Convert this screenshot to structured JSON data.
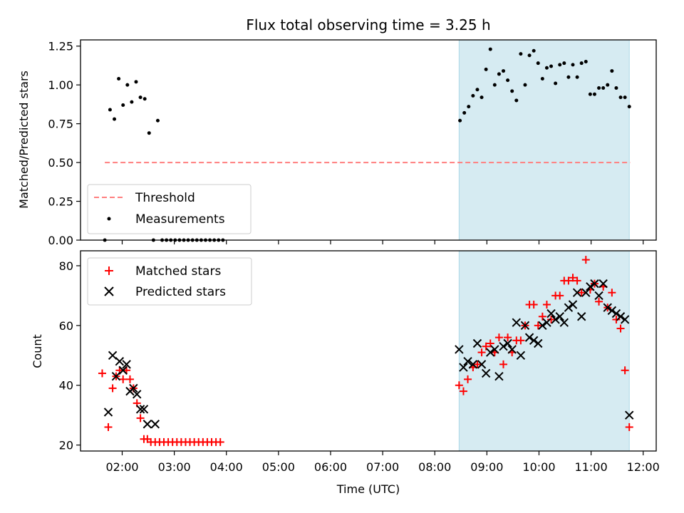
{
  "chart_data": {
    "title": "Flux total observing time = 3.25 h",
    "xlabel": "Time (UTC)",
    "x_ticks": [
      "02:00",
      "03:00",
      "04:00",
      "05:00",
      "06:00",
      "07:00",
      "08:00",
      "09:00",
      "10:00",
      "11:00",
      "12:00"
    ],
    "x_range": [
      "01:12",
      "12:15"
    ],
    "shaded_region": {
      "start": "08:28",
      "end": "11:44",
      "color": "#add8e6"
    },
    "panels": [
      {
        "type": "scatter",
        "ylabel": "Matched/Predicted stars",
        "ylim": [
          0,
          1.29
        ],
        "y_ticks": [
          "0.00",
          "0.25",
          "0.50",
          "0.75",
          "1.00",
          "1.25"
        ],
        "legend_placement": "lower-left",
        "series": [
          {
            "name": "Threshold",
            "kind": "dashed-line",
            "color": "#ff7f7f",
            "x": [
              "01:40",
              "11:45"
            ],
            "y": [
              0.5,
              0.5
            ]
          },
          {
            "name": "Measurements",
            "kind": "dot",
            "color": "#000000",
            "x": [
              "01:40",
              "01:46",
              "01:51",
              "01:56",
              "02:01",
              "02:06",
              "02:11",
              "02:16",
              "02:21",
              "02:26",
              "02:31",
              "02:36",
              "02:41",
              "02:46",
              "02:51",
              "02:56",
              "03:01",
              "03:06",
              "03:11",
              "03:16",
              "03:21",
              "03:26",
              "03:31",
              "03:36",
              "03:41",
              "03:46",
              "03:51",
              "03:56",
              "08:29",
              "08:34",
              "08:39",
              "08:44",
              "08:49",
              "08:54",
              "08:59",
              "09:04",
              "09:09",
              "09:14",
              "09:19",
              "09:24",
              "09:29",
              "09:34",
              "09:39",
              "09:44",
              "09:49",
              "09:54",
              "09:59",
              "10:04",
              "10:09",
              "10:14",
              "10:19",
              "10:24",
              "10:29",
              "10:34",
              "10:39",
              "10:44",
              "10:49",
              "10:54",
              "10:59",
              "11:04",
              "11:09",
              "11:14",
              "11:19",
              "11:24",
              "11:29",
              "11:34",
              "11:39",
              "11:44"
            ],
            "y": [
              0.0,
              0.84,
              0.78,
              1.04,
              0.87,
              1.0,
              0.89,
              1.02,
              0.92,
              0.91,
              0.69,
              0.0,
              0.77,
              0.0,
              0.0,
              0.0,
              0.0,
              0.0,
              0.0,
              0.0,
              0.0,
              0.0,
              0.0,
              0.0,
              0.0,
              0.0,
              0.0,
              0.0,
              0.77,
              0.82,
              0.86,
              0.93,
              0.97,
              0.92,
              1.1,
              1.23,
              1.0,
              1.07,
              1.09,
              1.03,
              0.96,
              0.9,
              1.2,
              1.0,
              1.19,
              1.22,
              1.14,
              1.04,
              1.11,
              1.12,
              1.01,
              1.13,
              1.14,
              1.05,
              1.13,
              1.05,
              1.14,
              1.15,
              0.94,
              0.94,
              0.98,
              0.98,
              1.0,
              1.09,
              0.98,
              0.92,
              0.92,
              0.86
            ]
          }
        ]
      },
      {
        "type": "scatter",
        "ylabel": "Count",
        "ylim": [
          18,
          85
        ],
        "y_ticks": [
          "20",
          "40",
          "60",
          "80"
        ],
        "legend_placement": "top-left",
        "series": [
          {
            "name": "Matched stars",
            "marker": "plus",
            "color": "#ff0000",
            "x": [
              "01:37",
              "01:44",
              "01:49",
              "01:53",
              "01:57",
              "02:01",
              "02:05",
              "02:09",
              "02:13",
              "02:17",
              "02:21",
              "02:25",
              "02:29",
              "02:33",
              "02:38",
              "02:43",
              "02:48",
              "02:53",
              "02:58",
              "03:03",
              "03:08",
              "03:13",
              "03:18",
              "03:23",
              "03:28",
              "03:33",
              "03:38",
              "03:43",
              "03:48",
              "03:53",
              "08:28",
              "08:33",
              "08:38",
              "08:44",
              "08:49",
              "08:54",
              "08:59",
              "09:04",
              "09:09",
              "09:14",
              "09:19",
              "09:24",
              "09:29",
              "09:34",
              "09:39",
              "09:44",
              "09:49",
              "09:54",
              "09:59",
              "10:04",
              "10:09",
              "10:14",
              "10:19",
              "10:24",
              "10:29",
              "10:34",
              "10:39",
              "10:44",
              "10:49",
              "10:54",
              "10:59",
              "11:04",
              "11:09",
              "11:14",
              "11:19",
              "11:24",
              "11:29",
              "11:34",
              "11:39",
              "11:44"
            ],
            "y": [
              44,
              26,
              39,
              43,
              45,
              42,
              45,
              42,
              39,
              34,
              29,
              22,
              22,
              21,
              21,
              21,
              21,
              21,
              21,
              21,
              21,
              21,
              21,
              21,
              21,
              21,
              21,
              21,
              21,
              21,
              40,
              38,
              42,
              46,
              47,
              51,
              53,
              54,
              51,
              56,
              47,
              56,
              51,
              55,
              55,
              60,
              67,
              67,
              60,
              63,
              67,
              62,
              70,
              70,
              75,
              75,
              76,
              75,
              71,
              82,
              72,
              74,
              68,
              73,
              66,
              71,
              62,
              59,
              45,
              26
            ]
          },
          {
            "name": "Predicted stars",
            "marker": "x",
            "color": "#000000",
            "x": [
              "01:44",
              "01:49",
              "01:53",
              "01:57",
              "02:01",
              "02:05",
              "02:09",
              "02:13",
              "02:17",
              "02:21",
              "02:25",
              "02:29",
              "02:38",
              "08:28",
              "08:33",
              "08:38",
              "08:44",
              "08:49",
              "08:54",
              "08:59",
              "09:04",
              "09:09",
              "09:14",
              "09:19",
              "09:24",
              "09:29",
              "09:34",
              "09:39",
              "09:44",
              "09:49",
              "09:54",
              "09:59",
              "10:04",
              "10:09",
              "10:14",
              "10:19",
              "10:24",
              "10:29",
              "10:34",
              "10:39",
              "10:44",
              "10:49",
              "10:54",
              "10:59",
              "11:04",
              "11:09",
              "11:14",
              "11:19",
              "11:24",
              "11:29",
              "11:34",
              "11:39",
              "11:44"
            ],
            "y": [
              31,
              50,
              43,
              48,
              45,
              47,
              38,
              39,
              37,
              32,
              32,
              27,
              27,
              52,
              46,
              48,
              47,
              54,
              47,
              44,
              51,
              52,
              43,
              53,
              54,
              52,
              61,
              50,
              60,
              56,
              55,
              54,
              60,
              61,
              64,
              62,
              63,
              61,
              66,
              67,
              71,
              63,
              71,
              73,
              74,
              70,
              74,
              66,
              65,
              64,
              63,
              62,
              30
            ]
          }
        ]
      }
    ]
  }
}
